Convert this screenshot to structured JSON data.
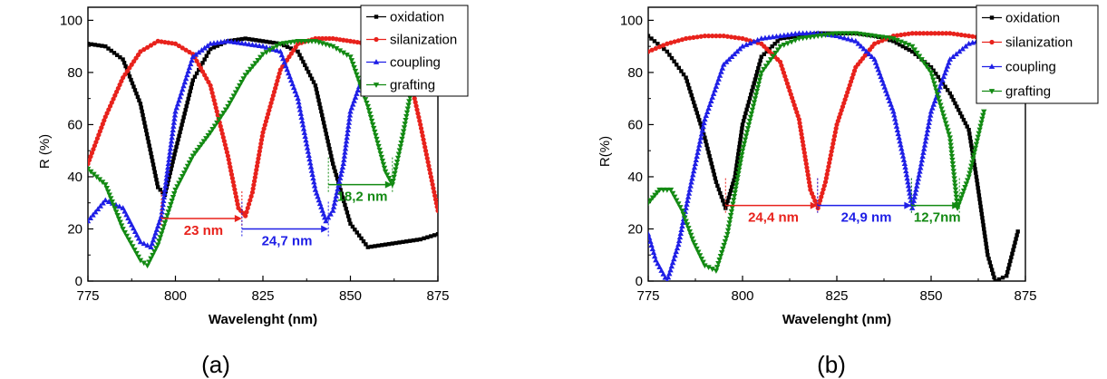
{
  "figure": {
    "colors": {
      "oxidation": "#000000",
      "silanization": "#e8221c",
      "coupling": "#1f1fe6",
      "grafting": "#138a13"
    }
  },
  "chart_data": [
    {
      "type": "line",
      "panel_label": "(a)",
      "xlabel": "Wavelenght (nm)",
      "ylabel": "R (%)",
      "xlim": [
        775,
        875
      ],
      "ylim": [
        0,
        105
      ],
      "xticks": [
        775,
        800,
        825,
        850,
        875
      ],
      "yticks": [
        0,
        20,
        40,
        60,
        80,
        100
      ],
      "legend_position": "top-right",
      "series": [
        {
          "name": "oxidation",
          "color": "#000000",
          "marker": "square",
          "x": [
            775,
            780,
            785,
            790,
            793,
            795,
            797,
            800,
            805,
            810,
            815,
            820,
            825,
            830,
            835,
            840,
            845,
            850,
            855,
            860,
            865,
            870,
            875
          ],
          "y": [
            91,
            90,
            85,
            68,
            49,
            36,
            33,
            50,
            77,
            89,
            92,
            93,
            92,
            91,
            88,
            75,
            45,
            22,
            13,
            14,
            15,
            16,
            18
          ]
        },
        {
          "name": "silanization",
          "color": "#e8221c",
          "marker": "circle",
          "x": [
            775,
            780,
            785,
            790,
            795,
            800,
            805,
            810,
            815,
            818,
            820,
            822,
            825,
            830,
            835,
            840,
            845,
            850,
            855,
            860,
            865,
            870,
            875
          ],
          "y": [
            45,
            63,
            78,
            88,
            92,
            91,
            87,
            75,
            48,
            28,
            25,
            34,
            57,
            81,
            91,
            93,
            93,
            92,
            91,
            90,
            90,
            60,
            27
          ]
        },
        {
          "name": "coupling",
          "color": "#1f1fe6",
          "marker": "triangle-up",
          "x": [
            775,
            780,
            785,
            790,
            793,
            796,
            800,
            805,
            810,
            815,
            820,
            825,
            830,
            835,
            840,
            843,
            845,
            848,
            850,
            855,
            860,
            865,
            870
          ],
          "y": [
            23,
            31,
            28,
            15,
            13,
            25,
            65,
            86,
            91,
            92,
            91,
            90,
            88,
            70,
            35,
            23,
            27,
            45,
            65,
            84,
            90,
            91,
            91
          ]
        },
        {
          "name": "grafting",
          "color": "#138a13",
          "marker": "triangle-down",
          "x": [
            775,
            780,
            785,
            790,
            792,
            795,
            800,
            805,
            810,
            815,
            820,
            825,
            830,
            835,
            840,
            845,
            850,
            855,
            860,
            862,
            865,
            870
          ],
          "y": [
            43,
            37,
            20,
            8,
            6,
            14,
            35,
            48,
            57,
            67,
            79,
            87,
            91,
            92,
            92,
            90,
            86,
            67,
            42,
            37,
            56,
            92
          ]
        }
      ],
      "annotations": [
        {
          "text": "23 nm",
          "color": "#e8221c",
          "from": 796,
          "to": 819,
          "y": 24
        },
        {
          "text": "24,7 nm",
          "color": "#1f1fe6",
          "from": 819,
          "to": 843.7,
          "y": 20
        },
        {
          "text": "18,2 nm",
          "color": "#138a13",
          "from": 843.7,
          "to": 862,
          "y": 37
        }
      ]
    },
    {
      "type": "line",
      "panel_label": "(b)",
      "xlabel": "Wavelenght (nm)",
      "ylabel": "R(%)",
      "xlim": [
        775,
        875
      ],
      "ylim": [
        0,
        105
      ],
      "xticks": [
        775,
        800,
        825,
        850,
        875
      ],
      "yticks": [
        0,
        20,
        40,
        60,
        80,
        100
      ],
      "legend_position": "top-right",
      "series": [
        {
          "name": "oxidation",
          "color": "#000000",
          "marker": "square",
          "x": [
            775,
            780,
            785,
            790,
            793,
            795.5,
            798,
            800,
            805,
            810,
            815,
            820,
            825,
            830,
            835,
            840,
            845,
            850,
            855,
            860,
            862,
            865,
            867,
            870,
            873
          ],
          "y": [
            94,
            88,
            78,
            55,
            38,
            28,
            40,
            60,
            86,
            93,
            94,
            95,
            95,
            95,
            94,
            92,
            88,
            82,
            72,
            58,
            40,
            10,
            0,
            2,
            19
          ]
        },
        {
          "name": "silanization",
          "color": "#e8221c",
          "marker": "circle",
          "x": [
            775,
            780,
            785,
            790,
            795,
            800,
            805,
            810,
            815,
            818,
            820,
            822,
            825,
            830,
            835,
            840,
            845,
            850,
            855,
            860,
            865
          ],
          "y": [
            88,
            91,
            93,
            94,
            94,
            93,
            91,
            84,
            62,
            35,
            28,
            38,
            60,
            82,
            91,
            94,
            95,
            95,
            95,
            94,
            93
          ]
        },
        {
          "name": "coupling",
          "color": "#1f1fe6",
          "marker": "triangle-up",
          "x": [
            775,
            777,
            780,
            783,
            786,
            790,
            795,
            800,
            805,
            810,
            815,
            820,
            825,
            830,
            835,
            840,
            843,
            845,
            847,
            850,
            855,
            860,
            865
          ],
          "y": [
            18,
            8,
            0,
            14,
            35,
            62,
            83,
            90,
            93,
            94,
            95,
            95,
            94,
            92,
            85,
            65,
            45,
            28,
            42,
            65,
            85,
            91,
            93
          ]
        },
        {
          "name": "grafting",
          "color": "#138a13",
          "marker": "triangle-down",
          "x": [
            775,
            778,
            781,
            784,
            787,
            790,
            793,
            796,
            800,
            805,
            810,
            815,
            820,
            825,
            830,
            835,
            840,
            845,
            850,
            855,
            857,
            860,
            864
          ],
          "y": [
            30,
            35,
            35,
            27,
            15,
            6,
            4,
            18,
            50,
            80,
            90,
            93,
            94,
            95,
            95,
            94,
            93,
            90,
            80,
            55,
            28,
            40,
            65
          ]
        }
      ],
      "annotations": [
        {
          "text": "24,4 nm",
          "color": "#e8221c",
          "from": 795.5,
          "to": 819.9,
          "y": 29
        },
        {
          "text": "24,9 nm",
          "color": "#1f1fe6",
          "from": 819.9,
          "to": 844.8,
          "y": 29
        },
        {
          "text": "12,7nm",
          "color": "#138a13",
          "from": 844.8,
          "to": 857.5,
          "y": 29
        }
      ]
    }
  ]
}
